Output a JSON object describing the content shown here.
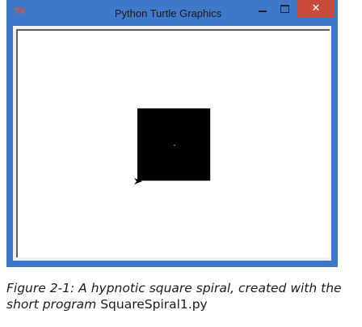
{
  "window": {
    "title": "Python Turtle Graphics",
    "icon": "tk-feather-icon",
    "minimize_icon": "minimize-icon",
    "maximize_icon": "maximize-icon",
    "close_icon": "close-icon",
    "close_glyph": "✕",
    "accent_color": "#3f78c8",
    "close_color": "#c74a3a"
  },
  "canvas": {
    "drawing": "square-spiral",
    "cursor_icon": "turtle-arrow-icon"
  },
  "caption": {
    "figure_label": "Figure 2-1: A hypnotic square spiral, created with the short program ",
    "program_name": "SquareSpiral1.py"
  }
}
